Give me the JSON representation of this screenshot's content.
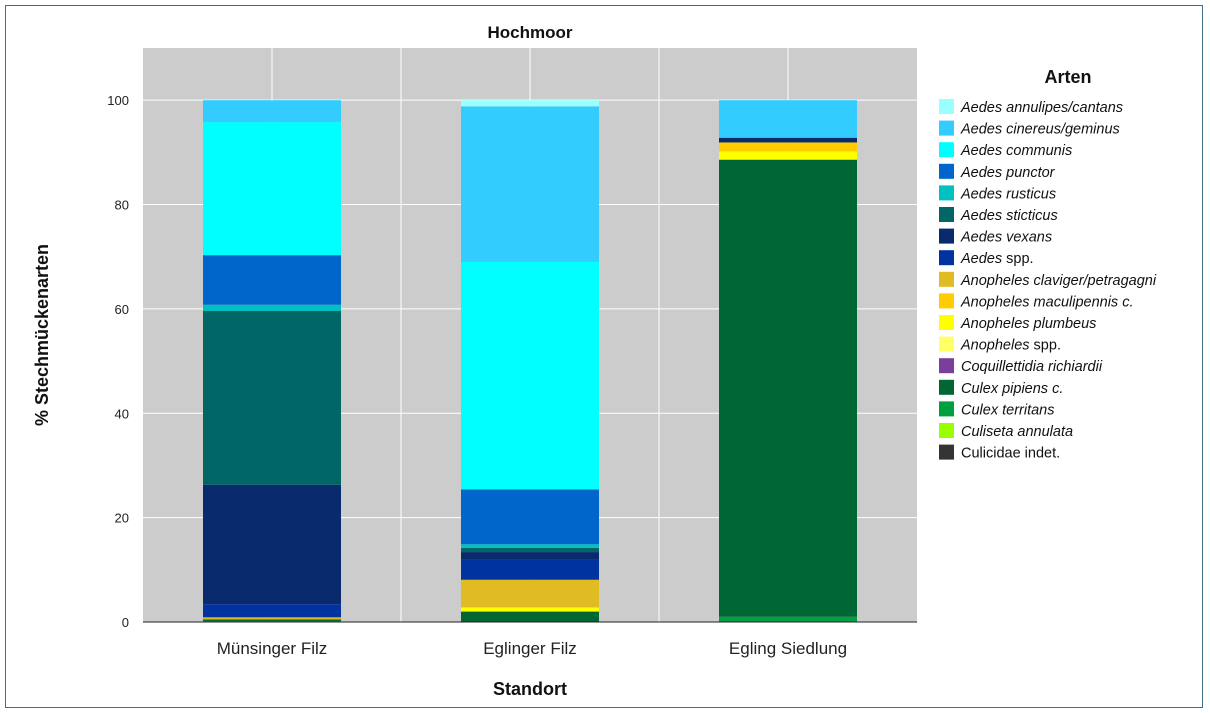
{
  "chart_data": {
    "type": "bar",
    "stacked": true,
    "title": "Hochmoor",
    "xlabel": "Standort",
    "ylabel": "% Stechmückenarten",
    "ylim": [
      0,
      110
    ],
    "yticks": [
      0,
      20,
      40,
      60,
      80,
      100
    ],
    "grid": true,
    "legend_title": "Arten",
    "legend_position": "right",
    "categories": [
      "Münsinger Filz",
      "Eglinger Filz",
      "Egling Siedlung"
    ],
    "series": [
      {
        "name": "Aedes annulipes/cantans",
        "italic": "Aedes annulipes/cantans",
        "plain": "",
        "color": "#99ffff",
        "values": [
          0,
          1.2,
          0
        ]
      },
      {
        "name": "Aedes cinereus/geminus",
        "italic": "Aedes cinereus/geminus",
        "plain": "",
        "color": "#33ccff",
        "values": [
          4.2,
          29.8,
          7.2
        ]
      },
      {
        "name": "Aedes communis",
        "italic": "Aedes communis",
        "plain": "",
        "color": "#00ffff",
        "values": [
          25.5,
          43.6,
          0
        ]
      },
      {
        "name": "Aedes punctor",
        "italic": "Aedes punctor",
        "plain": "",
        "color": "#0066cc",
        "values": [
          9.5,
          10.5,
          0
        ]
      },
      {
        "name": "Aedes rusticus",
        "italic": "Aedes rusticus",
        "plain": "",
        "color": "#00c0c0",
        "values": [
          1.2,
          0.7,
          0
        ]
      },
      {
        "name": "Aedes sticticus",
        "italic": "Aedes sticticus",
        "plain": "",
        "color": "#006666",
        "values": [
          33.3,
          0.8,
          0
        ]
      },
      {
        "name": "Aedes vexans",
        "italic": "Aedes vexans",
        "plain": "",
        "color": "#0a2a6e",
        "values": [
          22.9,
          1.5,
          0.9
        ]
      },
      {
        "name": "Aedes spp.",
        "italic": "Aedes",
        "plain": " spp.",
        "color": "#0033a0",
        "values": [
          2.5,
          3.8,
          0
        ]
      },
      {
        "name": "Anopheles claviger/petragagni",
        "italic": "Anopheles claviger/petragagni",
        "plain": "",
        "color": "#e0bb22",
        "values": [
          0.4,
          5.3,
          0
        ]
      },
      {
        "name": "Anopheles maculipennis c.",
        "italic": "Anopheles maculipennis c.",
        "plain": "",
        "color": "#ffcc00",
        "values": [
          0,
          0,
          1.7
        ]
      },
      {
        "name": "Anopheles plumbeus",
        "italic": "Anopheles plumbeus",
        "plain": "",
        "color": "#ffff00",
        "values": [
          0,
          0.8,
          1.6
        ]
      },
      {
        "name": "Anopheles spp.",
        "italic": "Anopheles",
        "plain": " spp.",
        "color": "#ffff66",
        "values": [
          0,
          0,
          0
        ]
      },
      {
        "name": "Coquillettidia richiardii",
        "italic": "Coquillettidia richiardii",
        "plain": "",
        "color": "#7a3e9d",
        "values": [
          0,
          0,
          0
        ]
      },
      {
        "name": "Culex pipiens c.",
        "italic": "Culex pipiens c.",
        "plain": "",
        "color": "#006633",
        "values": [
          0.3,
          2.0,
          87.6
        ]
      },
      {
        "name": "Culex territans",
        "italic": "Culex territans",
        "plain": "",
        "color": "#00a040",
        "values": [
          0.2,
          0,
          1.0
        ]
      },
      {
        "name": "Culiseta annulata",
        "italic": "Culiseta annulata",
        "plain": "",
        "color": "#99ff00",
        "values": [
          0,
          0,
          0
        ]
      },
      {
        "name": "Culicidae indet.",
        "italic": "",
        "plain": "Culicidae indet.",
        "color": "#333333",
        "values": [
          0,
          0,
          0
        ]
      }
    ]
  }
}
